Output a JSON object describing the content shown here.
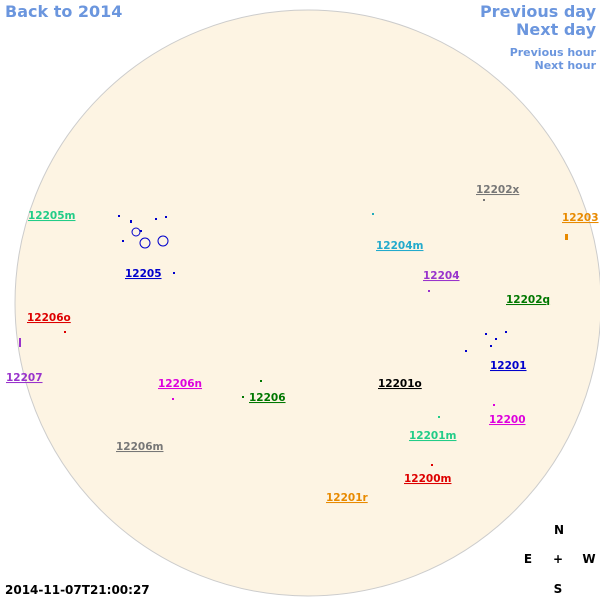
{
  "nav": {
    "back": "Back to 2014",
    "prev_day": "Previous day",
    "next_day": "Next day",
    "prev_hour": "Previous hour",
    "next_hour": "Next hour"
  },
  "regions": [
    "12205m",
    "12203",
    "12202x",
    "12204m",
    "12205",
    "12204",
    "12202q",
    "12206o",
    "12201",
    "12207",
    "12206n",
    "12201o",
    "12206",
    "12200",
    "12206m",
    "12201m",
    "12200m",
    "12201r"
  ],
  "compass": {
    "north": "N",
    "east": "E",
    "center": "+",
    "west": "W",
    "south": "S"
  },
  "timestamp": "2014-11-07T21:00:27"
}
